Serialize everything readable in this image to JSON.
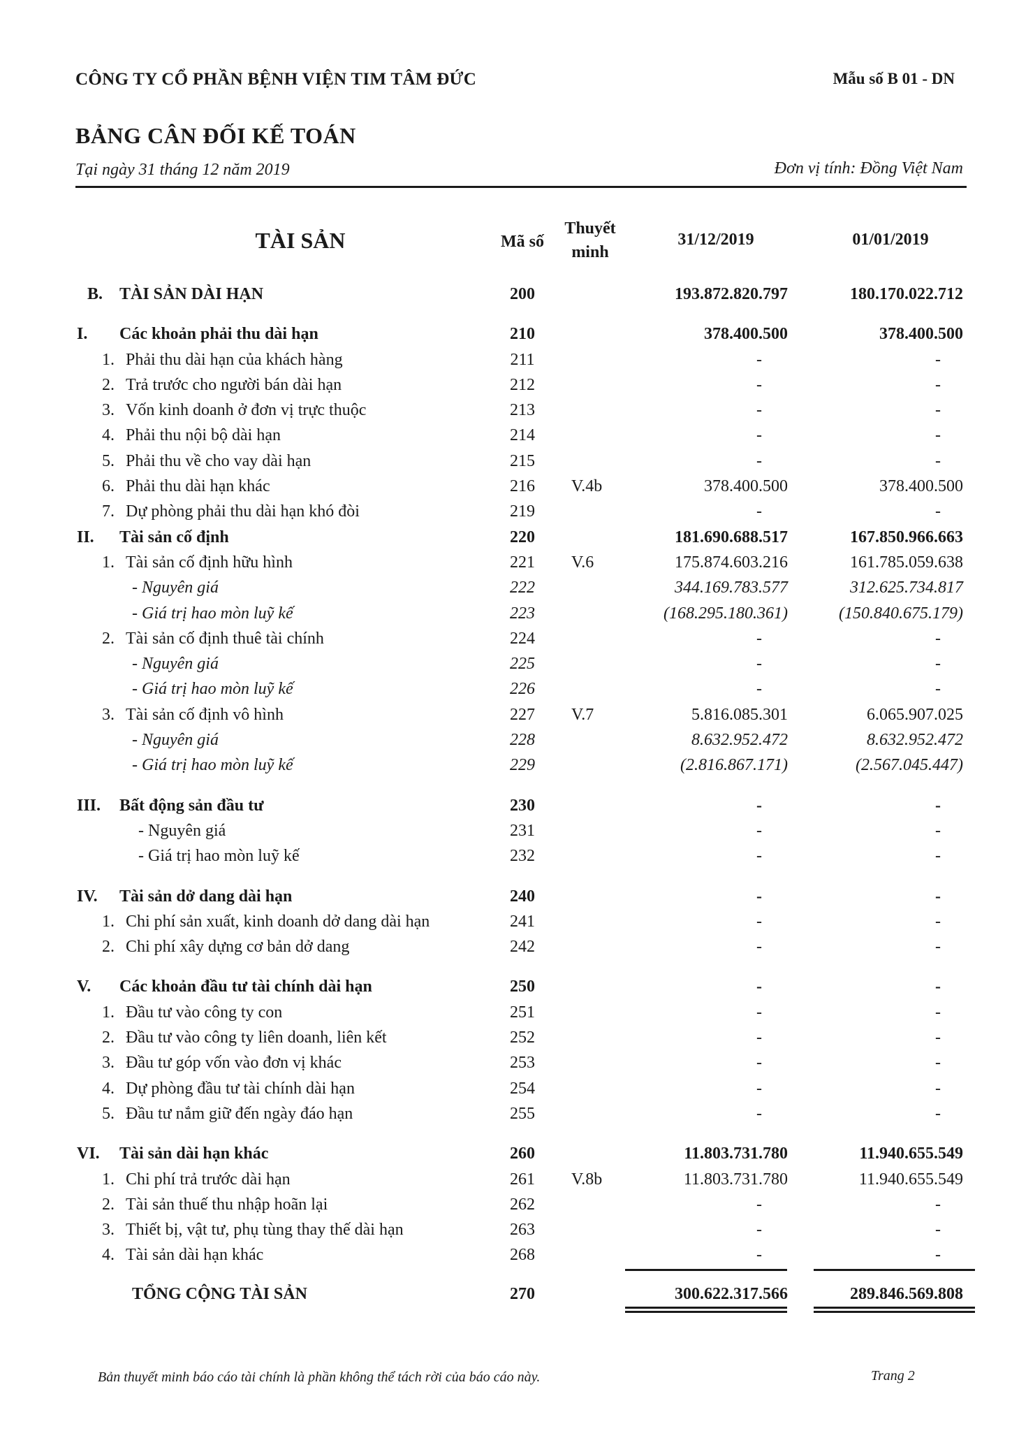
{
  "header": {
    "company": "CÔNG TY CỔ PHẦN BỆNH VIỆN TIM TÂM ĐỨC",
    "form_code": "Mẫu số B 01 - DN",
    "title": "BẢNG CÂN ĐỐI KẾ TOÁN",
    "date": "Tại ngày 31 tháng 12 năm 2019",
    "unit": "Đơn vị tính: Đồng Việt Nam"
  },
  "columns": {
    "asset": "TÀI SẢN",
    "code": "Mã số",
    "note": "Thuyết minh",
    "period_end": "31/12/2019",
    "period_start": "01/01/2019"
  },
  "rows": [
    {
      "kind": "top",
      "num": "B.",
      "label": "TÀI SẢN DÀI HẠN",
      "code": "200",
      "note": "",
      "v1": "193.872.820.797",
      "v2": "180.170.022.712"
    },
    {
      "kind": "section",
      "num": "I.",
      "label": "Các khoản phải thu dài hạn",
      "code": "210",
      "note": "",
      "v1": "378.400.500",
      "v2": "378.400.500"
    },
    {
      "kind": "item",
      "num": "1.",
      "label": "Phải thu dài hạn của khách hàng",
      "code": "211",
      "note": "",
      "v1": "-",
      "v2": "-"
    },
    {
      "kind": "item",
      "num": "2.",
      "label": "Trả trước cho người bán dài hạn",
      "code": "212",
      "note": "",
      "v1": "-",
      "v2": "-"
    },
    {
      "kind": "item",
      "num": "3.",
      "label": "Vốn kinh doanh ở đơn vị trực thuộc",
      "code": "213",
      "note": "",
      "v1": "-",
      "v2": "-"
    },
    {
      "kind": "item",
      "num": "4.",
      "label": "Phải thu nội bộ dài hạn",
      "code": "214",
      "note": "",
      "v1": "-",
      "v2": "-"
    },
    {
      "kind": "item",
      "num": "5.",
      "label": "Phải thu về cho vay dài hạn",
      "code": "215",
      "note": "",
      "v1": "-",
      "v2": "-"
    },
    {
      "kind": "item",
      "num": "6.",
      "label": "Phải thu dài hạn khác",
      "code": "216",
      "note": "V.4b",
      "v1": "378.400.500",
      "v2": "378.400.500"
    },
    {
      "kind": "item",
      "num": "7.",
      "label": "Dự phòng phải thu dài hạn khó đòi",
      "code": "219",
      "note": "",
      "v1": "-",
      "v2": "-"
    },
    {
      "kind": "section-tight",
      "num": "II.",
      "label": "Tài sản cố định",
      "code": "220",
      "note": "",
      "v1": "181.690.688.517",
      "v2": "167.850.966.663"
    },
    {
      "kind": "item",
      "num": "1.",
      "label": "Tài sản cố định hữu hình",
      "code": "221",
      "note": "V.6",
      "v1": "175.874.603.216",
      "v2": "161.785.059.638"
    },
    {
      "kind": "sub",
      "num": "",
      "label": "- Nguyên giá",
      "code": "222",
      "note": "",
      "v1": "344.169.783.577",
      "v2": "312.625.734.817"
    },
    {
      "kind": "sub",
      "num": "",
      "label": "- Giá trị hao mòn luỹ kế",
      "code": "223",
      "note": "",
      "v1": "(168.295.180.361)",
      "v2": "(150.840.675.179)"
    },
    {
      "kind": "item",
      "num": "2.",
      "label": "Tài sản cố định thuê tài chính",
      "code": "224",
      "note": "",
      "v1": "-",
      "v2": "-"
    },
    {
      "kind": "sub",
      "num": "",
      "label": "- Nguyên giá",
      "code": "225",
      "note": "",
      "v1": "-",
      "v2": "-"
    },
    {
      "kind": "sub",
      "num": "",
      "label": "- Giá trị hao mòn luỹ kế",
      "code": "226",
      "note": "",
      "v1": "-",
      "v2": "-"
    },
    {
      "kind": "item",
      "num": "3.",
      "label": "Tài sản cố định vô hình",
      "code": "227",
      "note": "V.7",
      "v1": "5.816.085.301",
      "v2": "6.065.907.025"
    },
    {
      "kind": "sub",
      "num": "",
      "label": "- Nguyên giá",
      "code": "228",
      "note": "",
      "v1": "8.632.952.472",
      "v2": "8.632.952.472"
    },
    {
      "kind": "sub",
      "num": "",
      "label": "- Giá trị hao mòn luỹ kế",
      "code": "229",
      "note": "",
      "v1": "(2.816.867.171)",
      "v2": "(2.567.045.447)"
    },
    {
      "kind": "section",
      "num": "III.",
      "label": "Bất động sản đầu tư",
      "code": "230",
      "note": "",
      "v1": "-",
      "v2": "-"
    },
    {
      "kind": "plain-sub",
      "num": "",
      "label": "- Nguyên giá",
      "code": "231",
      "note": "",
      "v1": "-",
      "v2": "-"
    },
    {
      "kind": "plain-sub",
      "num": "",
      "label": "- Giá trị hao mòn luỹ kế",
      "code": "232",
      "note": "",
      "v1": "-",
      "v2": "-"
    },
    {
      "kind": "section",
      "num": "IV.",
      "label": "Tài sản dở dang dài hạn",
      "code": "240",
      "note": "",
      "v1": "-",
      "v2": "-"
    },
    {
      "kind": "item",
      "num": "1.",
      "label": "Chi phí sản xuất, kinh doanh dở dang dài hạn",
      "code": "241",
      "note": "",
      "v1": "-",
      "v2": "-"
    },
    {
      "kind": "item",
      "num": "2.",
      "label": "Chi phí xây dựng cơ bản dở dang",
      "code": "242",
      "note": "",
      "v1": "-",
      "v2": "-"
    },
    {
      "kind": "section",
      "num": "V.",
      "label": "Các khoản đầu tư tài chính dài hạn",
      "code": "250",
      "note": "",
      "v1": "-",
      "v2": "-"
    },
    {
      "kind": "item",
      "num": "1.",
      "label": "Đầu tư vào công ty con",
      "code": "251",
      "note": "",
      "v1": "-",
      "v2": "-"
    },
    {
      "kind": "item",
      "num": "2.",
      "label": "Đầu tư vào công ty liên doanh, liên kết",
      "code": "252",
      "note": "",
      "v1": "-",
      "v2": "-"
    },
    {
      "kind": "item",
      "num": "3.",
      "label": "Đầu tư góp vốn vào đơn vị khác",
      "code": "253",
      "note": "",
      "v1": "-",
      "v2": "-"
    },
    {
      "kind": "item",
      "num": "4.",
      "label": "Dự phòng đầu tư tài chính dài hạn",
      "code": "254",
      "note": "",
      "v1": "-",
      "v2": "-"
    },
    {
      "kind": "item",
      "num": "5.",
      "label": "Đầu tư nắm giữ đến ngày đáo hạn",
      "code": "255",
      "note": "",
      "v1": "-",
      "v2": "-"
    },
    {
      "kind": "section",
      "num": "VI.",
      "label": "Tài sản dài hạn khác",
      "code": "260",
      "note": "",
      "v1": "11.803.731.780",
      "v2": "11.940.655.549"
    },
    {
      "kind": "item",
      "num": "1.",
      "label": "Chi phí trả trước dài hạn",
      "code": "261",
      "note": "V.8b",
      "v1": "11.803.731.780",
      "v2": "11.940.655.549"
    },
    {
      "kind": "item",
      "num": "2.",
      "label": "Tài sản thuế thu nhập hoãn lại",
      "code": "262",
      "note": "",
      "v1": "-",
      "v2": "-"
    },
    {
      "kind": "item",
      "num": "3.",
      "label": "Thiết bị, vật tư, phụ tùng thay thế dài hạn",
      "code": "263",
      "note": "",
      "v1": "-",
      "v2": "-"
    },
    {
      "kind": "item",
      "num": "4.",
      "label": "Tài sản dài hạn khác",
      "code": "268",
      "note": "",
      "v1": "-",
      "v2": "-"
    },
    {
      "kind": "total",
      "num": "",
      "label": "TỔNG CỘNG TÀI SẢN",
      "code": "270",
      "note": "",
      "v1": "300.622.317.566",
      "v2": "289.846.569.808"
    }
  ],
  "footer": {
    "note": "Bản thuyết minh báo cáo tài chính là phần không thể tách rời của báo cáo này.",
    "page": "Trang 2"
  }
}
